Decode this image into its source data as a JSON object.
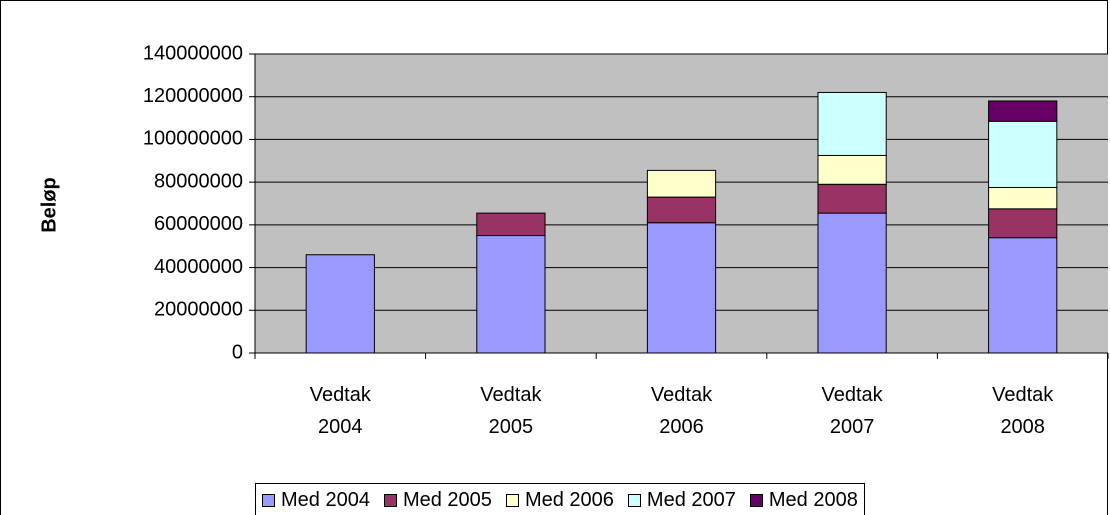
{
  "chart_data": {
    "type": "stacked_bar",
    "y_label": "Beløp",
    "categories": [
      "Vedtak 2004",
      "Vedtak 2005",
      "Vedtak 2006",
      "Vedtak 2007",
      "Vedtak 2008"
    ],
    "series": [
      {
        "name": "Med 2004",
        "color": "#9999ff",
        "values": [
          46000000,
          55000000,
          61000000,
          65500000,
          54000000
        ]
      },
      {
        "name": "Med 2005",
        "color": "#993366",
        "values": [
          null,
          10500000,
          12000000,
          13500000,
          13500000
        ]
      },
      {
        "name": "Med 2006",
        "color": "#ffffcc",
        "values": [
          null,
          null,
          12500000,
          13500000,
          10000000
        ]
      },
      {
        "name": "Med 2007",
        "color": "#ccffff",
        "values": [
          null,
          null,
          null,
          29500000,
          31000000
        ]
      },
      {
        "name": "Med 2008",
        "color": "#660066",
        "values": [
          null,
          null,
          null,
          null,
          9500000
        ]
      }
    ],
    "ylim": [
      0,
      140000000
    ],
    "yticks": [
      0,
      20000000,
      40000000,
      60000000,
      80000000,
      100000000,
      120000000,
      140000000
    ],
    "grid": true,
    "plot_color": "#c0c0c0"
  }
}
